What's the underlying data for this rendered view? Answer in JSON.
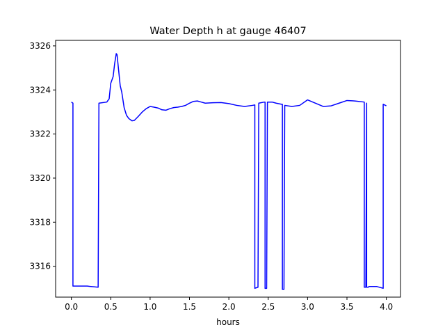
{
  "chart_data": {
    "type": "line",
    "title": "Water Depth h at gauge 46407",
    "xlabel": "hours",
    "ylabel": "",
    "xlim": [
      -0.2,
      4.18
    ],
    "ylim": [
      3314.6,
      3326.25
    ],
    "xticks": [
      0.0,
      0.5,
      1.0,
      1.5,
      2.0,
      2.5,
      3.0,
      3.5,
      4.0
    ],
    "xtick_labels": [
      "0.0",
      "0.5",
      "1.0",
      "1.5",
      "2.0",
      "2.5",
      "3.0",
      "3.5",
      "4.0"
    ],
    "yticks": [
      3316,
      3318,
      3320,
      3322,
      3324,
      3326
    ],
    "ytick_labels": [
      "3316",
      "3318",
      "3320",
      "3322",
      "3324",
      "3326"
    ],
    "grid": false,
    "line_color": "#0000ff",
    "series": [
      {
        "name": "",
        "x": [
          0.0,
          0.02,
          0.02,
          0.2,
          0.34,
          0.35,
          0.45,
          0.48,
          0.5,
          0.53,
          0.55,
          0.57,
          0.58,
          0.6,
          0.62,
          0.64,
          0.67,
          0.7,
          0.73,
          0.77,
          0.8,
          0.85,
          0.9,
          0.95,
          1.0,
          1.05,
          1.1,
          1.15,
          1.2,
          1.25,
          1.3,
          1.35,
          1.4,
          1.45,
          1.5,
          1.55,
          1.6,
          1.65,
          1.7,
          1.8,
          1.9,
          2.0,
          2.1,
          2.2,
          2.3,
          2.33,
          2.33,
          2.37,
          2.38,
          2.45,
          2.46,
          2.46,
          2.48,
          2.49,
          2.55,
          2.6,
          2.67,
          2.68,
          2.68,
          2.7,
          2.71,
          2.8,
          2.9,
          3.0,
          3.1,
          3.2,
          3.3,
          3.4,
          3.5,
          3.6,
          3.72,
          3.72,
          3.74,
          3.75,
          3.75,
          3.77,
          3.78,
          3.88,
          3.96,
          3.96,
          4.0
        ],
        "y": [
          3323.45,
          3323.4,
          3315.1,
          3315.1,
          3315.05,
          3323.4,
          3323.45,
          3323.6,
          3324.3,
          3324.6,
          3325.2,
          3325.65,
          3325.6,
          3324.9,
          3324.2,
          3323.9,
          3323.2,
          3322.85,
          3322.7,
          3322.6,
          3322.62,
          3322.8,
          3323.0,
          3323.15,
          3323.25,
          3323.22,
          3323.18,
          3323.1,
          3323.08,
          3323.15,
          3323.2,
          3323.22,
          3323.25,
          3323.3,
          3323.4,
          3323.48,
          3323.5,
          3323.45,
          3323.4,
          3323.42,
          3323.43,
          3323.38,
          3323.3,
          3323.25,
          3323.3,
          3323.32,
          3315.0,
          3315.05,
          3323.4,
          3323.45,
          3323.45,
          3315.0,
          3315.0,
          3323.45,
          3323.45,
          3323.4,
          3323.35,
          3323.35,
          3314.95,
          3314.95,
          3323.3,
          3323.25,
          3323.3,
          3323.55,
          3323.4,
          3323.25,
          3323.28,
          3323.4,
          3323.52,
          3323.5,
          3323.45,
          3315.05,
          3315.05,
          3323.4,
          3315.05,
          3315.05,
          3315.08,
          3315.08,
          3315.0,
          3323.35,
          3323.28
        ]
      }
    ]
  }
}
